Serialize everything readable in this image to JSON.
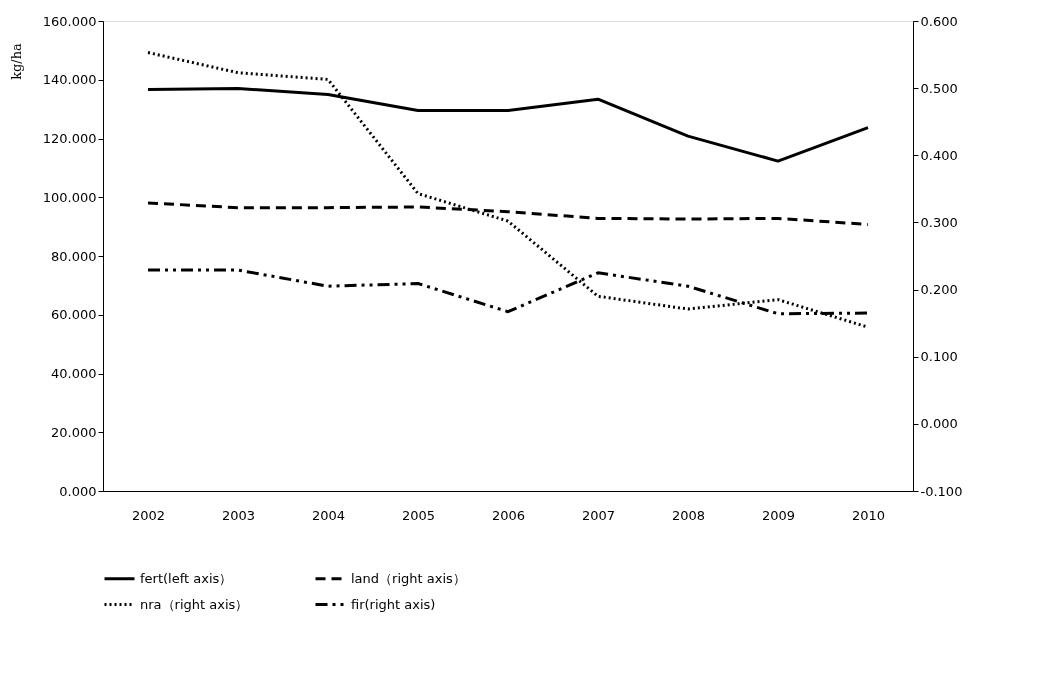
{
  "chart_data": {
    "type": "line",
    "ylabel": "kg/ha",
    "categories": [
      "2002",
      "2003",
      "2004",
      "2005",
      "2006",
      "2007",
      "2008",
      "2009",
      "2010"
    ],
    "series": [
      {
        "name": "fert(left axis）",
        "color": "#000000",
        "line_style": "solid",
        "values": [
          136.7,
          137.0,
          135.0,
          129.5,
          129.5,
          133.4,
          120.8,
          112.3,
          123.7
        ]
      },
      {
        "name": "land（right axis）",
        "color": "#000000",
        "line_style": "dashed",
        "axis": "y2",
        "values": [
          0.329,
          0.322,
          0.322,
          0.323,
          0.316,
          0.306,
          0.305,
          0.306,
          0.297
        ]
      },
      {
        "name": "nra（right axis）",
        "color": "#000000",
        "line_style": "dotted",
        "axis": "y2",
        "values": [
          0.553,
          0.523,
          0.513,
          0.343,
          0.302,
          0.19,
          0.171,
          0.185,
          0.144
        ]
      },
      {
        "name": "fir(right axis)",
        "color": "#000000",
        "line_style": "dashdot",
        "axis": "y2",
        "values": [
          0.229,
          0.229,
          0.205,
          0.209,
          0.167,
          0.225,
          0.205,
          0.164,
          0.165
        ]
      }
    ],
    "ylim": [
      0,
      160
    ],
    "yticks": [
      {
        "value": 0,
        "label": "0.000"
      },
      {
        "value": 20,
        "label": "20.000"
      },
      {
        "value": 40,
        "label": "40.000"
      },
      {
        "value": 60,
        "label": "60.000"
      },
      {
        "value": 80,
        "label": "80.000"
      },
      {
        "value": 100,
        "label": "100.000"
      },
      {
        "value": 120,
        "label": "120.000"
      },
      {
        "value": 140,
        "label": "140.000"
      },
      {
        "value": 160,
        "label": "160.000"
      }
    ],
    "y2lim": [
      -0.1,
      0.6
    ],
    "y2ticks": [
      {
        "value": -0.1,
        "label": "-0.100"
      },
      {
        "value": 0,
        "label": "0.000"
      },
      {
        "value": 0.1,
        "label": "0.100"
      },
      {
        "value": 0.2,
        "label": "0.200"
      },
      {
        "value": 0.3,
        "label": "0.300"
      },
      {
        "value": 0.4,
        "label": "0.400"
      },
      {
        "value": 0.5,
        "label": "0.500"
      },
      {
        "value": 0.6,
        "label": "0.600"
      }
    ],
    "grid": false,
    "legend": "bottom",
    "marker": "none"
  }
}
